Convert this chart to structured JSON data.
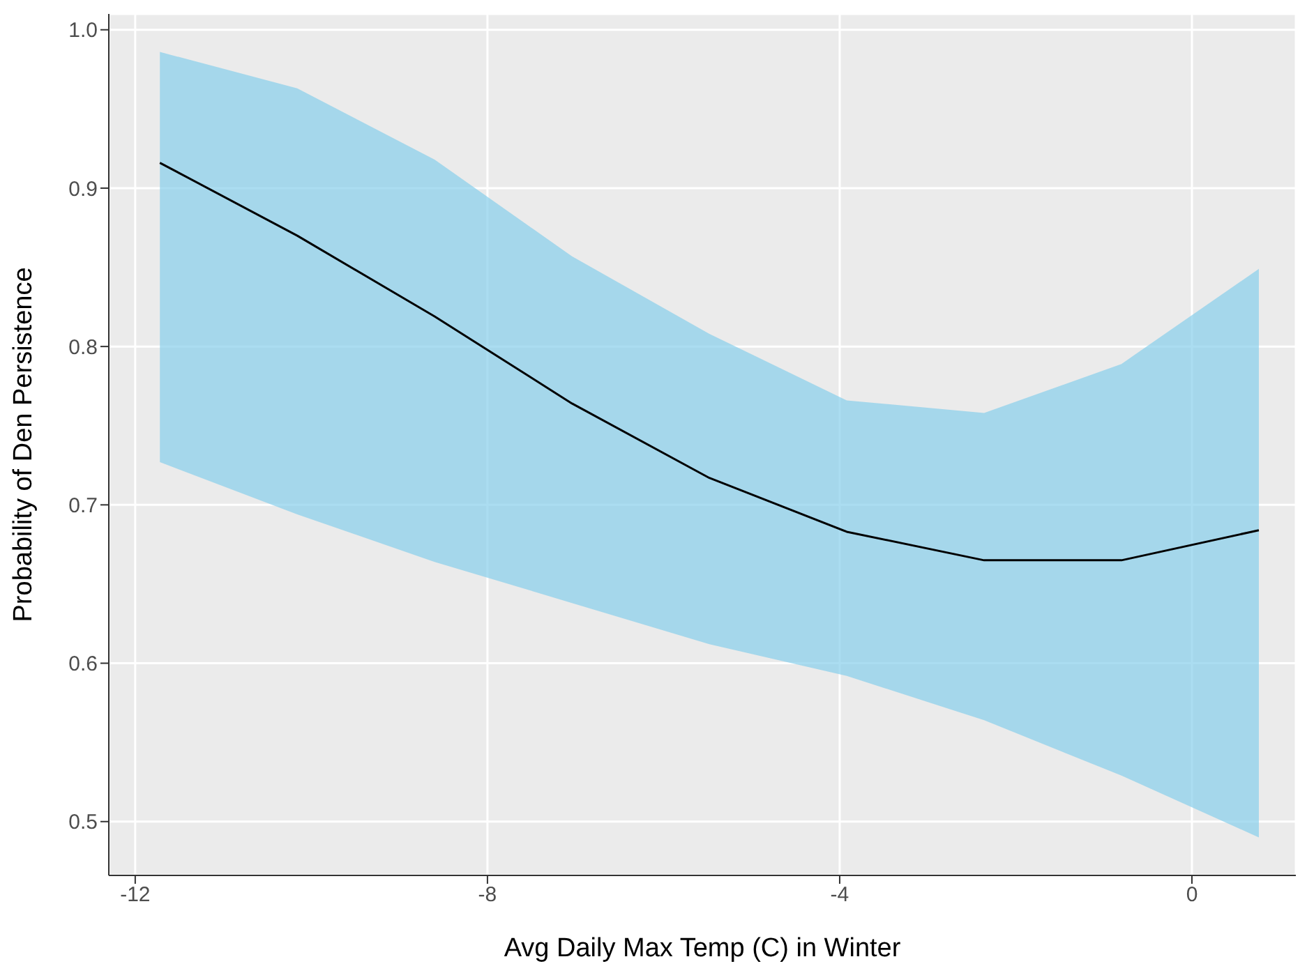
{
  "chart_data": {
    "type": "line",
    "xlabel": "Avg Daily Max Temp (C) in Winter",
    "ylabel": "Probability of Den Persistence",
    "x": [
      -11.72,
      -10.16,
      -8.6,
      -7.04,
      -5.48,
      -3.92,
      -2.36,
      -0.8,
      0.76
    ],
    "series": [
      {
        "color": "#000000",
        "values": [
          0.916,
          0.87,
          0.819,
          0.764,
          0.717,
          0.683,
          0.665,
          0.665,
          0.684
        ],
        "lower": [
          0.727,
          0.694,
          0.664,
          0.638,
          0.612,
          0.592,
          0.564,
          0.529,
          0.49
        ],
        "upper": [
          0.986,
          0.963,
          0.918,
          0.857,
          0.808,
          0.766,
          0.758,
          0.789,
          0.849
        ]
      }
    ],
    "xlim": [
      -12.3,
      1.18
    ],
    "xticks": [
      -12,
      -8,
      -4,
      0
    ],
    "ylim": [
      0.466,
      1.01
    ],
    "yticks": [
      0.5,
      0.6,
      0.7,
      0.8,
      0.9,
      {
        "value": 1,
        "label": "1.0"
      }
    ],
    "grid": true,
    "line_style": "solid",
    "marker": "none"
  }
}
